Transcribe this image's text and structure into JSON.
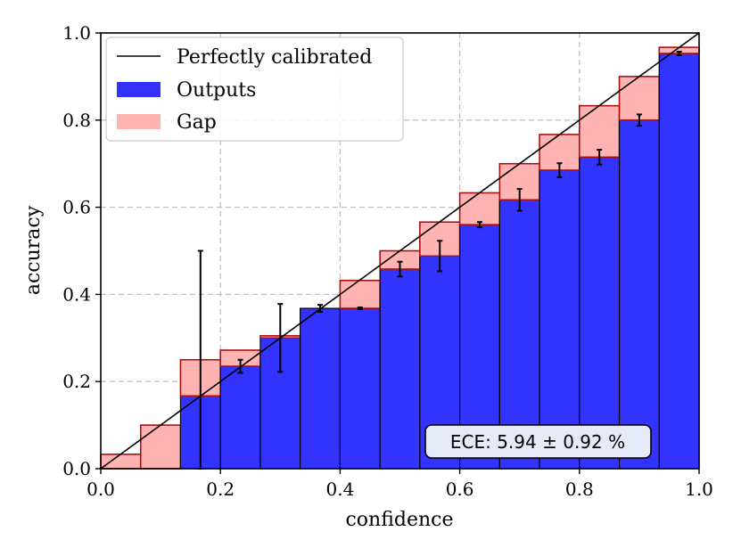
{
  "chart_data": {
    "type": "bar",
    "xlabel": "confidence",
    "ylabel": "accuracy",
    "xlim": [
      0.0,
      1.0
    ],
    "ylim": [
      0.0,
      1.0
    ],
    "x_ticks": [
      "0.0",
      "0.2",
      "0.4",
      "0.6",
      "0.8",
      "1.0"
    ],
    "y_ticks": [
      "0.0",
      "0.2",
      "0.4",
      "0.6",
      "0.8",
      "1.0"
    ],
    "grid": true,
    "legend_position": "top-left",
    "legend": {
      "calibrated_label": "Perfectly calibrated",
      "outputs_label": "Outputs",
      "gap_label": "Gap"
    },
    "annotation": "ECE: 5.94 ± 0.92 %",
    "colors": {
      "outputs": "#3333ff",
      "gap": "#ffb3b3",
      "gap_edge": "#aa1111",
      "gap_overlap": "#7a2aa6",
      "diagonal": "#000000",
      "grid": "#c0c0c0"
    },
    "bin_edges": [
      0.0,
      0.0667,
      0.1333,
      0.2,
      0.2667,
      0.3333,
      0.4,
      0.4667,
      0.5333,
      0.6,
      0.6667,
      0.7333,
      0.8,
      0.8667,
      0.9333,
      1.0
    ],
    "series": [
      {
        "name": "Outputs",
        "values": [
          0.0,
          0.0,
          0.167,
          0.235,
          0.3,
          0.368,
          0.368,
          0.458,
          0.488,
          0.56,
          0.617,
          0.685,
          0.715,
          0.8,
          0.953
        ],
        "errors": [
          0.0,
          0.0,
          0.333,
          0.015,
          0.078,
          0.008,
          0.002,
          0.017,
          0.035,
          0.006,
          0.025,
          0.016,
          0.017,
          0.013,
          0.004
        ]
      },
      {
        "name": "Gap",
        "values": [
          0.033,
          0.1,
          0.25,
          0.272,
          0.305,
          0.368,
          0.432,
          0.5,
          0.566,
          0.633,
          0.7,
          0.767,
          0.833,
          0.9,
          0.967
        ]
      }
    ]
  }
}
